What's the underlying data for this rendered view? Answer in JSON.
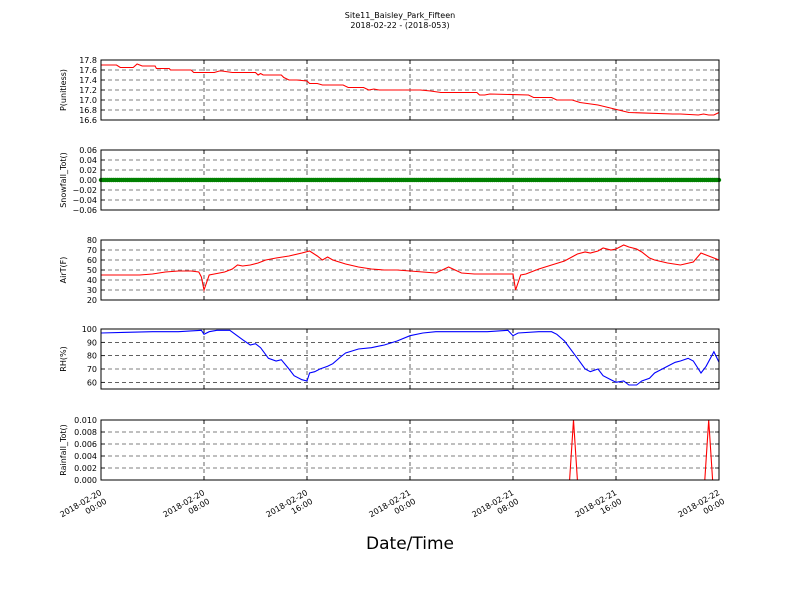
{
  "figure": {
    "title": "Site11_Baisley_Park_Fifteen",
    "subtitle": "2018-02-22 - (2018-053)",
    "xlabel": "Date/Time"
  },
  "chart_data": [
    {
      "type": "line",
      "ylabel": "P(unitless)",
      "ylim": [
        16.6,
        17.8
      ],
      "yticks": [
        "16.6",
        "16.8",
        "17.0",
        "17.2",
        "17.4",
        "17.6",
        "17.8"
      ],
      "color": "#ff0000",
      "grid": true,
      "x_unit": "hours since 2018-02-20 00:00",
      "x": [
        0,
        1.2,
        1.5,
        2.5,
        2.8,
        3.2,
        3.3,
        4.2,
        4.3,
        5.3,
        5.4,
        7,
        7.2,
        8.6,
        8.8,
        9.2,
        9.4,
        10.2,
        10.4,
        12,
        12.2,
        12.4,
        12.6,
        14,
        14.2,
        14.6,
        15.2,
        16,
        16.2,
        16.8,
        17.2,
        18.8,
        19.2,
        20.4,
        20.8,
        21.2,
        21.6,
        24.6,
        24.8,
        25.6,
        26.4,
        29.2,
        29.4,
        29.8,
        30.2,
        33.2,
        33.6,
        35,
        35.4,
        36.6,
        37.2,
        38.6,
        39.4,
        40.2,
        41,
        44.4,
        45,
        46.4,
        46.8,
        47.2,
        47.6,
        48
      ],
      "y": [
        17.7,
        17.7,
        17.65,
        17.65,
        17.72,
        17.68,
        17.68,
        17.68,
        17.63,
        17.63,
        17.6,
        17.6,
        17.55,
        17.55,
        17.55,
        17.58,
        17.58,
        17.55,
        17.55,
        17.55,
        17.5,
        17.53,
        17.5,
        17.5,
        17.45,
        17.4,
        17.4,
        17.38,
        17.33,
        17.33,
        17.3,
        17.3,
        17.25,
        17.25,
        17.2,
        17.22,
        17.2,
        17.2,
        17.2,
        17.18,
        17.15,
        17.15,
        17.1,
        17.1,
        17.12,
        17.1,
        17.05,
        17.05,
        17.0,
        17.0,
        16.95,
        16.9,
        16.85,
        16.8,
        16.75,
        16.72,
        16.72,
        16.7,
        16.72,
        16.7,
        16.7,
        16.75
      ]
    },
    {
      "type": "scatter",
      "ylabel": "Snowfall_Tot()",
      "ylim": [
        -0.06,
        0.06
      ],
      "yticks": [
        "−0.06",
        "−0.04",
        "−0.02",
        "0.00",
        "0.02",
        "0.04",
        "0.06"
      ],
      "color": "#008000",
      "grid": true,
      "constant_value": 0.0,
      "x_range": [
        0,
        48
      ]
    },
    {
      "type": "line",
      "ylabel": "AirT(F)",
      "ylim": [
        20,
        80
      ],
      "yticks": [
        "20",
        "30",
        "40",
        "50",
        "60",
        "70",
        "80"
      ],
      "color": "#ff0000",
      "grid": true,
      "x_unit": "hours since 2018-02-20 00:00",
      "x": [
        0,
        1,
        2,
        3,
        4,
        5,
        6,
        7,
        7.6,
        7.8,
        8,
        8.4,
        8.8,
        9.6,
        10.2,
        10.6,
        11,
        11.6,
        12.2,
        12.8,
        13.6,
        14.6,
        15.6,
        16.2,
        16.8,
        17.2,
        17.6,
        18,
        19,
        20,
        21,
        22,
        23,
        24,
        25,
        26,
        27,
        28,
        29,
        30,
        31,
        32,
        32.2,
        32.6,
        33,
        34,
        35,
        36,
        37,
        37.6,
        38,
        38.6,
        39,
        39.6,
        40,
        40.6,
        41,
        41.6,
        42,
        42.6,
        43,
        44,
        45,
        46,
        46.6,
        47,
        47.6,
        48
      ],
      "y": [
        45,
        45,
        45,
        45,
        46,
        48,
        49,
        49,
        48,
        43,
        30,
        45,
        46,
        48,
        51,
        55,
        54,
        55,
        57,
        60,
        62,
        64,
        67,
        69,
        64,
        60,
        63,
        60,
        56,
        53,
        51,
        50,
        50,
        49,
        48,
        47,
        53,
        47,
        46,
        46,
        46,
        46,
        30,
        45,
        46,
        51,
        55,
        59,
        66,
        68,
        67,
        69,
        72,
        70,
        71,
        75,
        73,
        71,
        68,
        62,
        60,
        57,
        55,
        58,
        67,
        65,
        62,
        60
      ]
    },
    {
      "type": "line",
      "ylabel": "RH(%)",
      "ylim": [
        55,
        100
      ],
      "yticks": [
        "60",
        "70",
        "80",
        "90",
        "100"
      ],
      "color": "#0000ff",
      "grid": true,
      "x_unit": "hours since 2018-02-20 00:00",
      "x": [
        0,
        2,
        4,
        6,
        7.8,
        8,
        8.4,
        9,
        10,
        11,
        11.6,
        12,
        12.4,
        13,
        13.6,
        14,
        14.6,
        15,
        15.6,
        16,
        16.2,
        16.6,
        17,
        17.6,
        18,
        18.6,
        19,
        20,
        21,
        22,
        23,
        24,
        25,
        26,
        27,
        28,
        30,
        31.6,
        32,
        32.4,
        34,
        35,
        35.4,
        36,
        37,
        37.6,
        38,
        38.6,
        39,
        39.6,
        40,
        40.6,
        41,
        41.6,
        42,
        42.6,
        43,
        44,
        44.6,
        45,
        45.6,
        46,
        46.6,
        47,
        47.6,
        48
      ],
      "y": [
        97,
        97.5,
        98,
        98,
        99,
        96,
        98,
        99,
        99,
        92,
        88,
        89,
        86,
        78,
        76,
        77,
        70,
        65,
        62,
        61,
        67,
        68,
        70,
        72,
        74,
        79,
        82,
        85,
        86,
        88,
        91,
        95,
        97,
        98,
        98,
        98,
        98,
        99,
        95,
        97,
        98,
        98,
        96,
        91,
        78,
        70,
        68,
        70,
        65,
        62,
        60,
        61,
        58,
        58,
        61,
        63,
        67,
        72,
        75,
        76,
        78,
        76,
        67,
        72,
        83,
        75
      ]
    },
    {
      "type": "line",
      "ylabel": "Rainfall_Tot()",
      "ylim": [
        0,
        0.01
      ],
      "yticks": [
        "0.000",
        "0.002",
        "0.004",
        "0.006",
        "0.008",
        "0.010"
      ],
      "color": "#ff0000",
      "grid": true,
      "x_unit": "hours since 2018-02-20 00:00",
      "x": [
        0,
        36.4,
        36.7,
        37.0,
        46.9,
        47.2,
        47.5
      ],
      "y": [
        0,
        0,
        0.01,
        0,
        0,
        0.01,
        0
      ]
    }
  ],
  "x_axis": {
    "range": [
      0,
      48
    ],
    "tick_hours": [
      0,
      8,
      16,
      24,
      32,
      40,
      48
    ],
    "tick_labels": [
      [
        "2018-02-20",
        "00:00"
      ],
      [
        "2018-02-20",
        "08:00"
      ],
      [
        "2018-02-20",
        "16:00"
      ],
      [
        "2018-02-21",
        "00:00"
      ],
      [
        "2018-02-21",
        "08:00"
      ],
      [
        "2018-02-21",
        "16:00"
      ],
      [
        "2018-02-22",
        "00:00"
      ]
    ]
  }
}
